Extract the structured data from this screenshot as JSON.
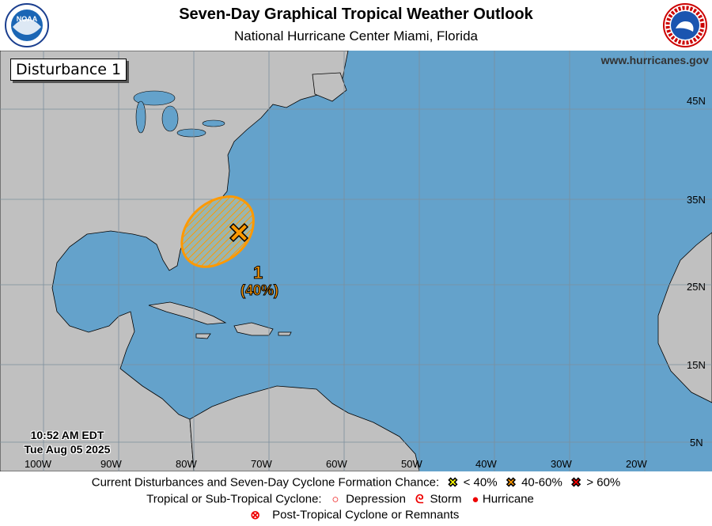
{
  "header": {
    "title": "Seven-Day Graphical Tropical Weather Outlook",
    "subtitle": "National Hurricane Center  Miami, Florida",
    "left_logo": "NOAA",
    "right_logo": "NATIONAL WEATHER SERVICE"
  },
  "map": {
    "panel_title": "Disturbance 1",
    "website": "www.hurricanes.gov",
    "time": "10:52 AM EDT",
    "date": "Tue Aug 05 2025",
    "lon_labels": [
      "100W",
      "90W",
      "80W",
      "70W",
      "60W",
      "50W",
      "40W",
      "30W",
      "20W"
    ],
    "lat_labels": [
      "45N",
      "35N",
      "25N",
      "15N",
      "5N"
    ],
    "disturbance": {
      "number": "1",
      "chance": "(40%)",
      "category": "40-60%",
      "color": "#ff9900"
    },
    "colors": {
      "ocean": "#64a2cb",
      "land": "#c0c0c0"
    }
  },
  "legend": {
    "row1_label": "Current Disturbances and Seven-Day Cyclone Formation Chance:",
    "low": "< 40%",
    "medium": "40-60%",
    "high": "> 60%",
    "low_color": "#ffff00",
    "medium_color": "#ff9900",
    "high_color": "#ff0000",
    "row2_label": "Tropical or Sub-Tropical Cyclone:",
    "depression": "Depression",
    "storm": "Storm",
    "hurricane": "Hurricane",
    "row3_label": "Post-Tropical Cyclone or Remnants"
  }
}
